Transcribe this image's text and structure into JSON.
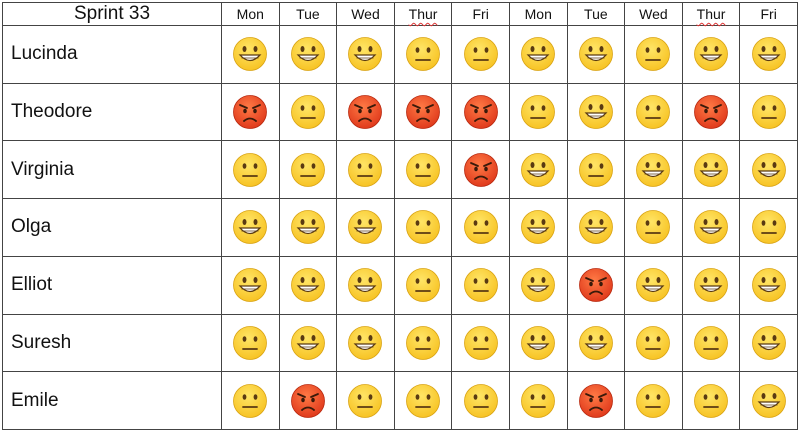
{
  "table": {
    "title": "Sprint 33",
    "days": [
      "Mon",
      "Tue",
      "Wed",
      "Thur",
      "Fri",
      "Mon",
      "Tue",
      "Wed",
      "Thur",
      "Fri"
    ],
    "spellcheck_flagged_day": "Thur",
    "mood_icons": {
      "grin": "grinning-face-icon",
      "neutral": "neutral-face-icon",
      "angry": "angry-face-icon"
    },
    "colors": {
      "grid_line": "#444444",
      "face_yellow": "#f7c324",
      "face_red": "#e03a1c"
    },
    "rows": [
      {
        "name": "Lucinda",
        "moods": [
          "grin",
          "grin",
          "grin",
          "neutral",
          "neutral",
          "grin",
          "grin",
          "neutral",
          "grin",
          "grin"
        ]
      },
      {
        "name": "Theodore",
        "moods": [
          "angry",
          "neutral",
          "angry",
          "angry",
          "angry",
          "neutral",
          "grin",
          "neutral",
          "angry",
          "neutral"
        ]
      },
      {
        "name": "Virginia",
        "moods": [
          "neutral",
          "neutral",
          "neutral",
          "neutral",
          "angry",
          "grin",
          "neutral",
          "grin",
          "grin",
          "grin"
        ]
      },
      {
        "name": "Olga",
        "moods": [
          "grin",
          "grin",
          "grin",
          "neutral",
          "neutral",
          "grin",
          "grin",
          "neutral",
          "grin",
          "neutral"
        ]
      },
      {
        "name": "Elliot",
        "moods": [
          "grin",
          "grin",
          "grin",
          "neutral",
          "neutral",
          "grin",
          "angry",
          "grin",
          "grin",
          "grin"
        ]
      },
      {
        "name": "Suresh",
        "moods": [
          "neutral",
          "grin",
          "grin",
          "neutral",
          "neutral",
          "grin",
          "grin",
          "neutral",
          "neutral",
          "grin"
        ]
      },
      {
        "name": "Emile",
        "moods": [
          "neutral",
          "angry",
          "neutral",
          "neutral",
          "neutral",
          "neutral",
          "angry",
          "neutral",
          "neutral",
          "grin"
        ]
      }
    ]
  }
}
